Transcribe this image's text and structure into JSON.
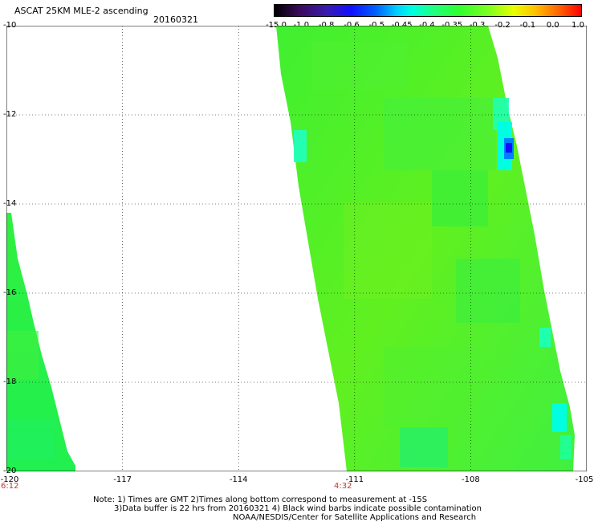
{
  "header": {
    "title": "ASCAT 25KM MLE-2 ascending",
    "date": "20160321"
  },
  "colorbar": {
    "labels": [
      "-15.0",
      "-1.0",
      "-0.8",
      "-0.6",
      "-0.5",
      "-0.45",
      "-0.4",
      "-0.35",
      "-0.3",
      "-0.2",
      "-0.1",
      "0.0",
      "1.0"
    ],
    "colors": [
      "#1a001a",
      "#3a0a5a",
      "#4a1aa0",
      "#1010ff",
      "#0050ff",
      "#00b0ff",
      "#00ffe0",
      "#20ff80",
      "#30ff30",
      "#80ff20",
      "#e0ff00",
      "#ffc000",
      "#ff6000",
      "#ff0000"
    ]
  },
  "map": {
    "lat_labels": [
      "-10",
      "-12",
      "-14",
      "-16",
      "-18",
      "-20"
    ],
    "lon_labels": [
      "-120",
      "-117",
      "-114",
      "-111",
      "-108",
      "-105"
    ],
    "time_labels": [
      "6:12",
      "4:32"
    ],
    "lat_range": [
      -20,
      -10
    ],
    "lon_range": [
      -120,
      -105
    ]
  },
  "notes": {
    "line1": "Note: 1) Times are GMT 2)Times along bottom correspond to measurement at -15S",
    "line2": "3)Data buffer is 22 hrs from 20160321 4) Black wind barbs indicate possible contamination",
    "line3": "NOAA/NESDIS/Center for Satellite Applications and Research"
  }
}
